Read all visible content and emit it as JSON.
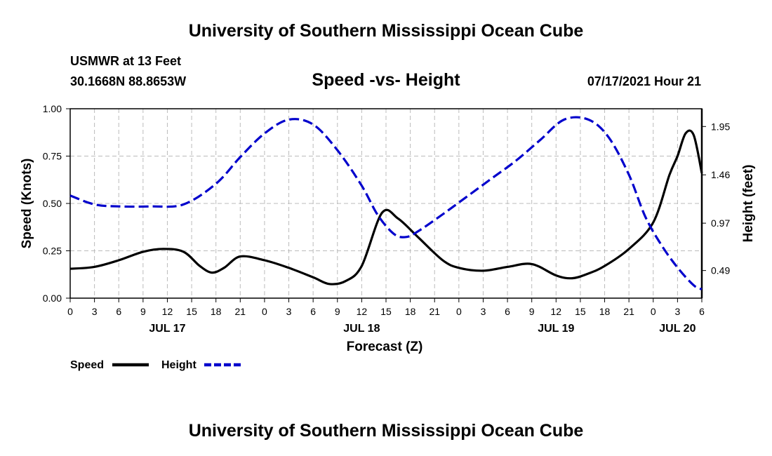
{
  "header": {
    "title": "University of Southern Mississippi Ocean Cube",
    "station": "USMWR at 13 Feet",
    "coords": "30.1668N  88.8653W",
    "subtitle": "Speed -vs- Height",
    "datetime": "07/17/2021 Hour 21"
  },
  "footer": {
    "title": "University of Southern Mississippi Ocean Cube"
  },
  "legend": {
    "speed_label": "Speed",
    "height_label": "Height"
  },
  "colors": {
    "speed": "#000000",
    "height": "#0000cc",
    "grid": "#bbbbbb"
  },
  "chart_data": {
    "type": "line",
    "title": "Speed -vs- Height",
    "xlabel": "Forecast (Z)",
    "ylabel": "Speed (Knots)",
    "ylabel_right": "Height (feet)",
    "x_unit": "hours from JUL 17 00Z",
    "xlim": [
      0,
      78
    ],
    "ylim": [
      0,
      1.0
    ],
    "ylim_right": [
      0.21,
      2.13
    ],
    "x_ticks": [
      0,
      3,
      6,
      9,
      12,
      15,
      18,
      21,
      24,
      27,
      30,
      33,
      36,
      39,
      42,
      45,
      48,
      51,
      54,
      57,
      60,
      63,
      66,
      69,
      72,
      75,
      78
    ],
    "x_tick_labels": [
      "0",
      "3",
      "6",
      "9",
      "12",
      "15",
      "18",
      "21",
      "0",
      "3",
      "6",
      "9",
      "12",
      "15",
      "18",
      "21",
      "0",
      "3",
      "6",
      "9",
      "12",
      "15",
      "18",
      "21",
      "0",
      "3",
      "6"
    ],
    "day_labels": [
      {
        "x": 12,
        "label": "JUL 17"
      },
      {
        "x": 36,
        "label": "JUL 18"
      },
      {
        "x": 60,
        "label": "JUL 19"
      },
      {
        "x": 75,
        "label": "JUL 20"
      }
    ],
    "y_ticks": [
      0,
      0.25,
      0.5,
      0.75,
      1.0
    ],
    "y_tick_labels": [
      "0.00",
      "0.25",
      "0.50",
      "0.75",
      "1.00"
    ],
    "y_ticks_right": [
      0.49,
      0.97,
      1.46,
      1.95
    ],
    "y_tick_labels_right": [
      "0.49",
      "0.97",
      "1.46",
      "1.95"
    ],
    "grid": true,
    "series": [
      {
        "name": "Speed",
        "axis": "left",
        "style": "solid",
        "color": "#000000",
        "x": [
          0,
          3,
          6,
          9,
          11.5,
          14,
          16,
          17.5,
          19,
          21,
          24,
          27,
          30,
          32,
          34,
          36,
          38.5,
          40.5,
          43,
          46,
          48,
          51,
          54,
          57,
          60,
          62,
          64,
          66,
          69,
          72,
          74,
          75,
          76,
          77,
          78
        ],
        "y": [
          0.155,
          0.165,
          0.2,
          0.245,
          0.26,
          0.245,
          0.17,
          0.135,
          0.16,
          0.22,
          0.2,
          0.16,
          0.11,
          0.075,
          0.09,
          0.17,
          0.45,
          0.42,
          0.32,
          0.2,
          0.16,
          0.145,
          0.165,
          0.18,
          0.12,
          0.105,
          0.13,
          0.17,
          0.26,
          0.4,
          0.65,
          0.75,
          0.87,
          0.86,
          0.66
        ]
      },
      {
        "name": "Height",
        "axis": "right",
        "style": "dashed",
        "color": "#0000cc",
        "x": [
          0,
          3,
          6,
          10,
          14,
          18,
          21,
          24,
          27,
          30,
          33,
          36,
          38,
          40,
          41.5,
          43,
          46,
          49,
          52,
          55,
          58,
          61,
          64,
          66.5,
          69,
          71,
          73,
          75,
          77,
          78
        ],
        "y": [
          1.25,
          1.16,
          1.14,
          1.14,
          1.16,
          1.37,
          1.64,
          1.88,
          2.02,
          1.97,
          1.71,
          1.35,
          1.05,
          0.86,
          0.83,
          0.89,
          1.06,
          1.24,
          1.42,
          1.6,
          1.81,
          2.02,
          2.02,
          1.84,
          1.46,
          1.04,
          0.75,
          0.52,
          0.34,
          0.3
        ]
      }
    ]
  }
}
